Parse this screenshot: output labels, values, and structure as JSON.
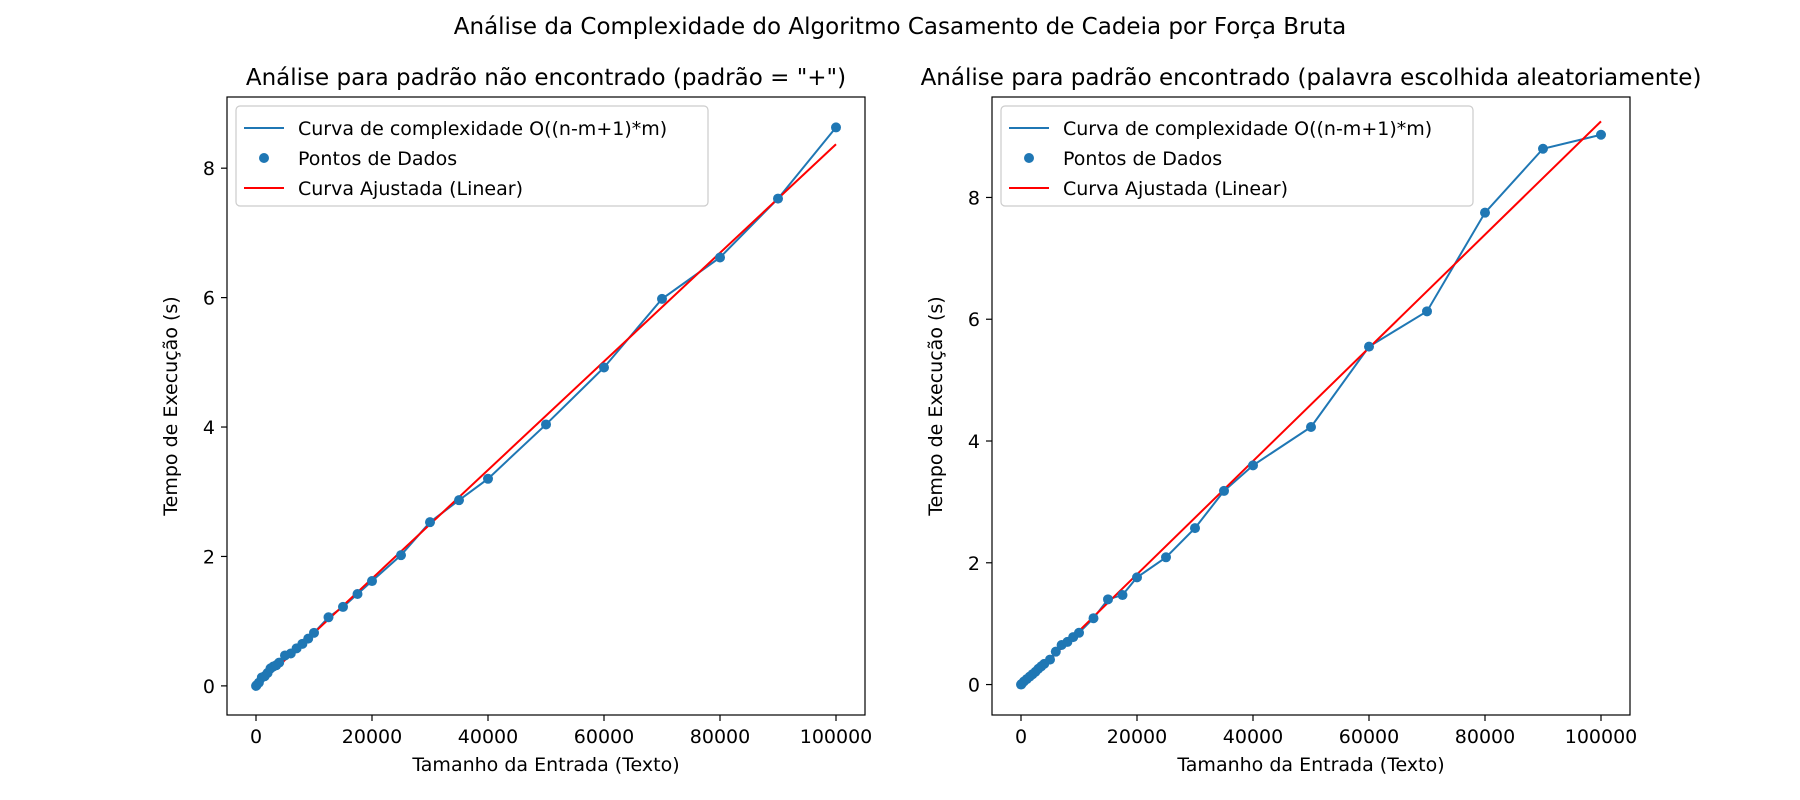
{
  "figure": {
    "suptitle": "Análise da Complexidade do Algoritmo Casamento de Cadeia por Força Bruta"
  },
  "colors": {
    "series_line": "#1f77b4",
    "series_points": "#1f77b4",
    "fit_line": "#ff0000",
    "axes": "#000000",
    "background": "#ffffff"
  },
  "chart_data": [
    {
      "type": "line",
      "title": "Análise para padrão não encontrado (padrão = \"+\")",
      "xlabel": "Tamanho da Entrada (Texto)",
      "ylabel": "Tempo de Execução (s)",
      "xlim": [
        -5000,
        105000
      ],
      "ylim": [
        -0.45,
        9.1
      ],
      "xticks": [
        0,
        20000,
        40000,
        60000,
        80000,
        100000
      ],
      "yticks": [
        0,
        2,
        4,
        6,
        8
      ],
      "grid": false,
      "legend_position": "top-left",
      "series": [
        {
          "name": "Curva de complexidade O((n-m+1)*m)",
          "style": "line",
          "x": [
            10,
            100,
            500,
            1000,
            1500,
            2000,
            2500,
            3000,
            3500,
            4000,
            5000,
            6000,
            7000,
            8000,
            9000,
            10000,
            12500,
            15000,
            17500,
            20000,
            25000,
            30000,
            35000,
            40000,
            50000,
            60000,
            70000,
            80000,
            90000,
            100000
          ],
          "y": [
            0.0,
            0.01,
            0.05,
            0.13,
            0.15,
            0.2,
            0.27,
            0.3,
            0.32,
            0.36,
            0.47,
            0.5,
            0.58,
            0.65,
            0.73,
            0.82,
            1.06,
            1.22,
            1.42,
            1.62,
            2.02,
            2.53,
            2.87,
            3.2,
            4.04,
            4.92,
            5.98,
            6.62,
            7.53,
            8.63
          ]
        },
        {
          "name": "Pontos de Dados",
          "style": "scatter",
          "x": [
            10,
            100,
            500,
            1000,
            1500,
            2000,
            2500,
            3000,
            3500,
            4000,
            5000,
            6000,
            7000,
            8000,
            9000,
            10000,
            12500,
            15000,
            17500,
            20000,
            25000,
            30000,
            35000,
            40000,
            50000,
            60000,
            70000,
            80000,
            90000,
            100000
          ],
          "y": [
            0.0,
            0.01,
            0.05,
            0.13,
            0.15,
            0.2,
            0.27,
            0.3,
            0.32,
            0.36,
            0.47,
            0.5,
            0.58,
            0.65,
            0.73,
            0.82,
            1.06,
            1.22,
            1.42,
            1.62,
            2.02,
            2.53,
            2.87,
            3.2,
            4.04,
            4.92,
            5.98,
            6.62,
            7.53,
            8.63
          ]
        },
        {
          "name": "Curva Ajustada (Linear)",
          "style": "fit",
          "x": [
            0,
            100000
          ],
          "y": [
            -0.02,
            8.37
          ]
        }
      ]
    },
    {
      "type": "line",
      "title": "Análise para padrão encontrado (palavra escolhida aleatoriamente)",
      "xlabel": "Tamanho da Entrada (Texto)",
      "ylabel": "Tempo de Execução (s)",
      "xlim": [
        -5000,
        105000
      ],
      "ylim": [
        -0.5,
        9.65
      ],
      "xticks": [
        0,
        20000,
        40000,
        60000,
        80000,
        100000
      ],
      "yticks": [
        0,
        2,
        4,
        6,
        8
      ],
      "grid": false,
      "legend_position": "top-left",
      "series": [
        {
          "name": "Curva de complexidade O((n-m+1)*m)",
          "style": "line",
          "x": [
            10,
            100,
            500,
            1000,
            1500,
            2000,
            2500,
            3000,
            3500,
            4000,
            5000,
            6000,
            7000,
            8000,
            9000,
            10000,
            12500,
            15000,
            17500,
            20000,
            25000,
            30000,
            35000,
            40000,
            50000,
            60000,
            70000,
            80000,
            90000,
            100000
          ],
          "y": [
            0.0,
            0.01,
            0.05,
            0.09,
            0.13,
            0.17,
            0.21,
            0.26,
            0.3,
            0.34,
            0.41,
            0.54,
            0.65,
            0.7,
            0.78,
            0.85,
            1.09,
            1.4,
            1.47,
            1.76,
            2.09,
            2.57,
            3.18,
            3.6,
            4.23,
            5.55,
            6.13,
            7.75,
            8.8,
            9.03
          ]
        },
        {
          "name": "Pontos de Dados",
          "style": "scatter",
          "x": [
            10,
            100,
            500,
            1000,
            1500,
            2000,
            2500,
            3000,
            3500,
            4000,
            5000,
            6000,
            7000,
            8000,
            9000,
            10000,
            12500,
            15000,
            17500,
            20000,
            25000,
            30000,
            35000,
            40000,
            50000,
            60000,
            70000,
            80000,
            90000,
            100000
          ],
          "y": [
            0.0,
            0.01,
            0.05,
            0.09,
            0.13,
            0.17,
            0.21,
            0.26,
            0.3,
            0.34,
            0.41,
            0.54,
            0.65,
            0.7,
            0.78,
            0.85,
            1.09,
            1.4,
            1.47,
            1.76,
            2.09,
            2.57,
            3.18,
            3.6,
            4.23,
            5.55,
            6.13,
            7.75,
            8.8,
            9.03
          ]
        },
        {
          "name": "Curva Ajustada (Linear)",
          "style": "fit",
          "x": [
            0,
            100000
          ],
          "y": [
            -0.05,
            9.25
          ]
        }
      ]
    }
  ]
}
